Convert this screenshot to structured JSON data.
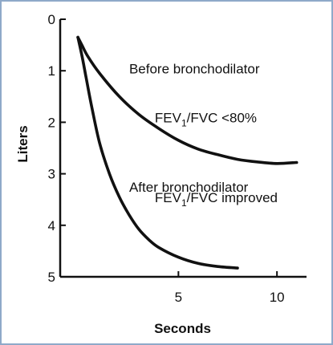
{
  "chart_data": {
    "type": "line",
    "title": "",
    "xlabel": "Seconds",
    "ylabel": "Liters",
    "xlim": [
      -1,
      11.5
    ],
    "ylim": [
      0,
      5
    ],
    "y_inverted": true,
    "grid": false,
    "x_ticks": [
      5,
      10
    ],
    "y_ticks": [
      0,
      1,
      2,
      3,
      4,
      5
    ],
    "series": [
      {
        "name": "Before bronchodilator",
        "color": "#111111",
        "x": [
          -0.1,
          0.1,
          0.4,
          1,
          2,
          3,
          4,
          5,
          6,
          7,
          8,
          9,
          10,
          11
        ],
        "y": [
          0.35,
          0.5,
          0.72,
          1.05,
          1.5,
          1.85,
          2.12,
          2.35,
          2.52,
          2.63,
          2.72,
          2.77,
          2.8,
          2.78
        ]
      },
      {
        "name": "After bronchodilator",
        "color": "#111111",
        "x": [
          -0.1,
          0.1,
          0.3,
          0.6,
          1,
          1.5,
          2,
          2.5,
          3,
          3.5,
          4,
          5,
          6,
          7,
          8
        ],
        "y": [
          0.35,
          0.7,
          1.1,
          1.7,
          2.4,
          3.0,
          3.45,
          3.8,
          4.08,
          4.28,
          4.43,
          4.62,
          4.74,
          4.8,
          4.83
        ]
      }
    ],
    "annotations": [
      {
        "text": "Before bronchodilator",
        "x": 2.5,
        "y": 1.05
      },
      {
        "text": "After bronchodilator",
        "x": 2.5,
        "y": 3.35
      }
    ],
    "ratio_labels": [
      {
        "pre": "FEV",
        "sub": "1",
        "post": "/FVC <80%",
        "x": 3.8,
        "y": 2.0
      },
      {
        "pre": "FEV",
        "sub": "1",
        "post": "/FVC improved",
        "x": 3.8,
        "y": 3.55
      }
    ]
  }
}
